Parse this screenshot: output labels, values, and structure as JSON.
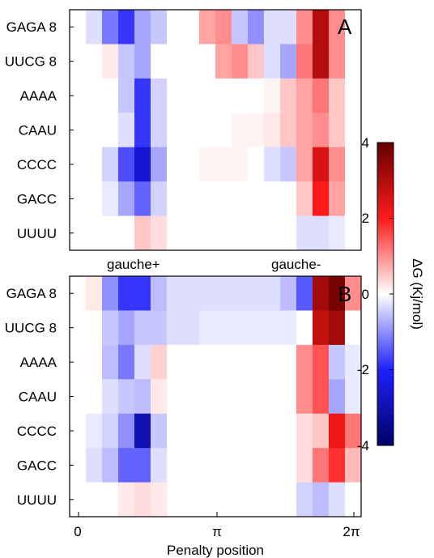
{
  "chart_data": [
    {
      "type": "heatmap",
      "panel": "A",
      "rows": [
        "GAGA 8",
        "UUCG 8",
        "AAAA",
        "CAAU",
        "CCCC",
        "GACC",
        "UUUU"
      ],
      "columns_count": 18,
      "annotations": [
        "gauche+",
        "gauche-"
      ],
      "values": [
        [
          0.0,
          -0.3,
          -1.2,
          -1.8,
          -0.8,
          -0.5,
          0.0,
          0.0,
          0.8,
          1.0,
          -0.5,
          -1.0,
          -0.3,
          -0.3,
          1.0,
          3.0,
          1.0,
          0.0
        ],
        [
          0.0,
          0.0,
          0.2,
          -0.5,
          -0.8,
          0.0,
          0.0,
          0.0,
          0.0,
          0.8,
          1.0,
          0.5,
          -0.3,
          -0.8,
          1.2,
          3.0,
          1.0,
          0.0
        ],
        [
          0.0,
          0.0,
          0.0,
          -0.5,
          -1.8,
          -0.4,
          0.0,
          0.0,
          0.0,
          0.0,
          0.0,
          0.0,
          0.1,
          0.5,
          0.8,
          1.2,
          0.5,
          0.0
        ],
        [
          0.0,
          0.0,
          0.0,
          -0.3,
          -1.8,
          -0.4,
          0.0,
          0.0,
          0.0,
          0.0,
          0.1,
          0.1,
          0.2,
          0.5,
          0.8,
          1.0,
          0.5,
          0.0
        ],
        [
          0.0,
          0.0,
          -0.4,
          -1.6,
          -2.6,
          -0.8,
          0.0,
          0.0,
          0.1,
          0.1,
          0.1,
          0.0,
          -0.3,
          -0.5,
          0.8,
          2.5,
          1.0,
          0.0
        ],
        [
          0.0,
          0.0,
          -0.2,
          -0.8,
          -1.4,
          -0.4,
          0.0,
          0.0,
          0.0,
          0.0,
          0.0,
          0.0,
          0.0,
          0.0,
          0.5,
          2.0,
          0.8,
          0.0
        ],
        [
          0.0,
          0.0,
          0.0,
          0.0,
          0.5,
          0.3,
          0.0,
          0.0,
          0.0,
          0.0,
          0.0,
          0.0,
          0.0,
          0.0,
          -0.3,
          -0.3,
          -0.2,
          0.0
        ]
      ]
    },
    {
      "type": "heatmap",
      "panel": "B",
      "rows": [
        "GAGA 8",
        "UUCG 8",
        "AAAA",
        "CAAU",
        "CCCC",
        "GACC",
        "UUUU"
      ],
      "columns_count": 18,
      "xticks": [
        "0",
        "π",
        "2π"
      ],
      "xlabel": "Penalty position",
      "values": [
        [
          0.0,
          0.2,
          -1.0,
          -1.8,
          -1.8,
          -0.6,
          -0.3,
          -0.3,
          -0.3,
          -0.3,
          -0.3,
          -0.3,
          -0.3,
          -0.6,
          -1.5,
          3.2,
          3.8,
          1.0
        ],
        [
          0.0,
          0.0,
          -0.5,
          -0.8,
          -0.5,
          -0.5,
          -0.3,
          -0.3,
          -0.2,
          -0.2,
          -0.2,
          -0.2,
          -0.2,
          -0.2,
          0.0,
          2.8,
          3.2,
          0.0
        ],
        [
          0.0,
          0.0,
          -0.6,
          -1.2,
          -0.3,
          0.4,
          0.0,
          0.0,
          0.0,
          0.0,
          0.0,
          0.0,
          0.0,
          0.0,
          1.0,
          1.5,
          -0.5,
          -0.2
        ],
        [
          0.0,
          0.0,
          -0.3,
          -0.5,
          -0.6,
          0.2,
          0.0,
          0.0,
          0.0,
          0.0,
          0.0,
          0.0,
          0.0,
          0.0,
          1.0,
          1.5,
          -0.8,
          -0.2
        ],
        [
          0.0,
          -0.2,
          -0.4,
          -1.0,
          -3.0,
          -0.5,
          0.0,
          0.0,
          0.0,
          0.0,
          0.0,
          0.0,
          0.0,
          0.0,
          0.3,
          0.5,
          2.2,
          1.2
        ],
        [
          0.0,
          -0.3,
          -0.6,
          -1.4,
          -1.4,
          -0.3,
          0.0,
          0.0,
          0.0,
          0.0,
          0.0,
          0.0,
          0.0,
          0.0,
          0.3,
          1.2,
          1.8,
          0.6
        ],
        [
          0.0,
          0.0,
          0.0,
          0.2,
          0.3,
          0.2,
          0.0,
          0.0,
          0.0,
          0.0,
          0.0,
          0.0,
          0.0,
          0.0,
          -0.4,
          -0.6,
          -0.3,
          0.0
        ]
      ]
    }
  ],
  "colorbar": {
    "label": "ΔG  (Kj/mol)",
    "ticks": [
      "4",
      "2",
      "0",
      "-2",
      "-4"
    ],
    "range": [
      -4,
      4
    ],
    "colors": {
      "low": "#000066",
      "blue": "#2020ff",
      "mid": "#ffffff",
      "red": "#ff1a1a",
      "high": "#660000"
    }
  }
}
